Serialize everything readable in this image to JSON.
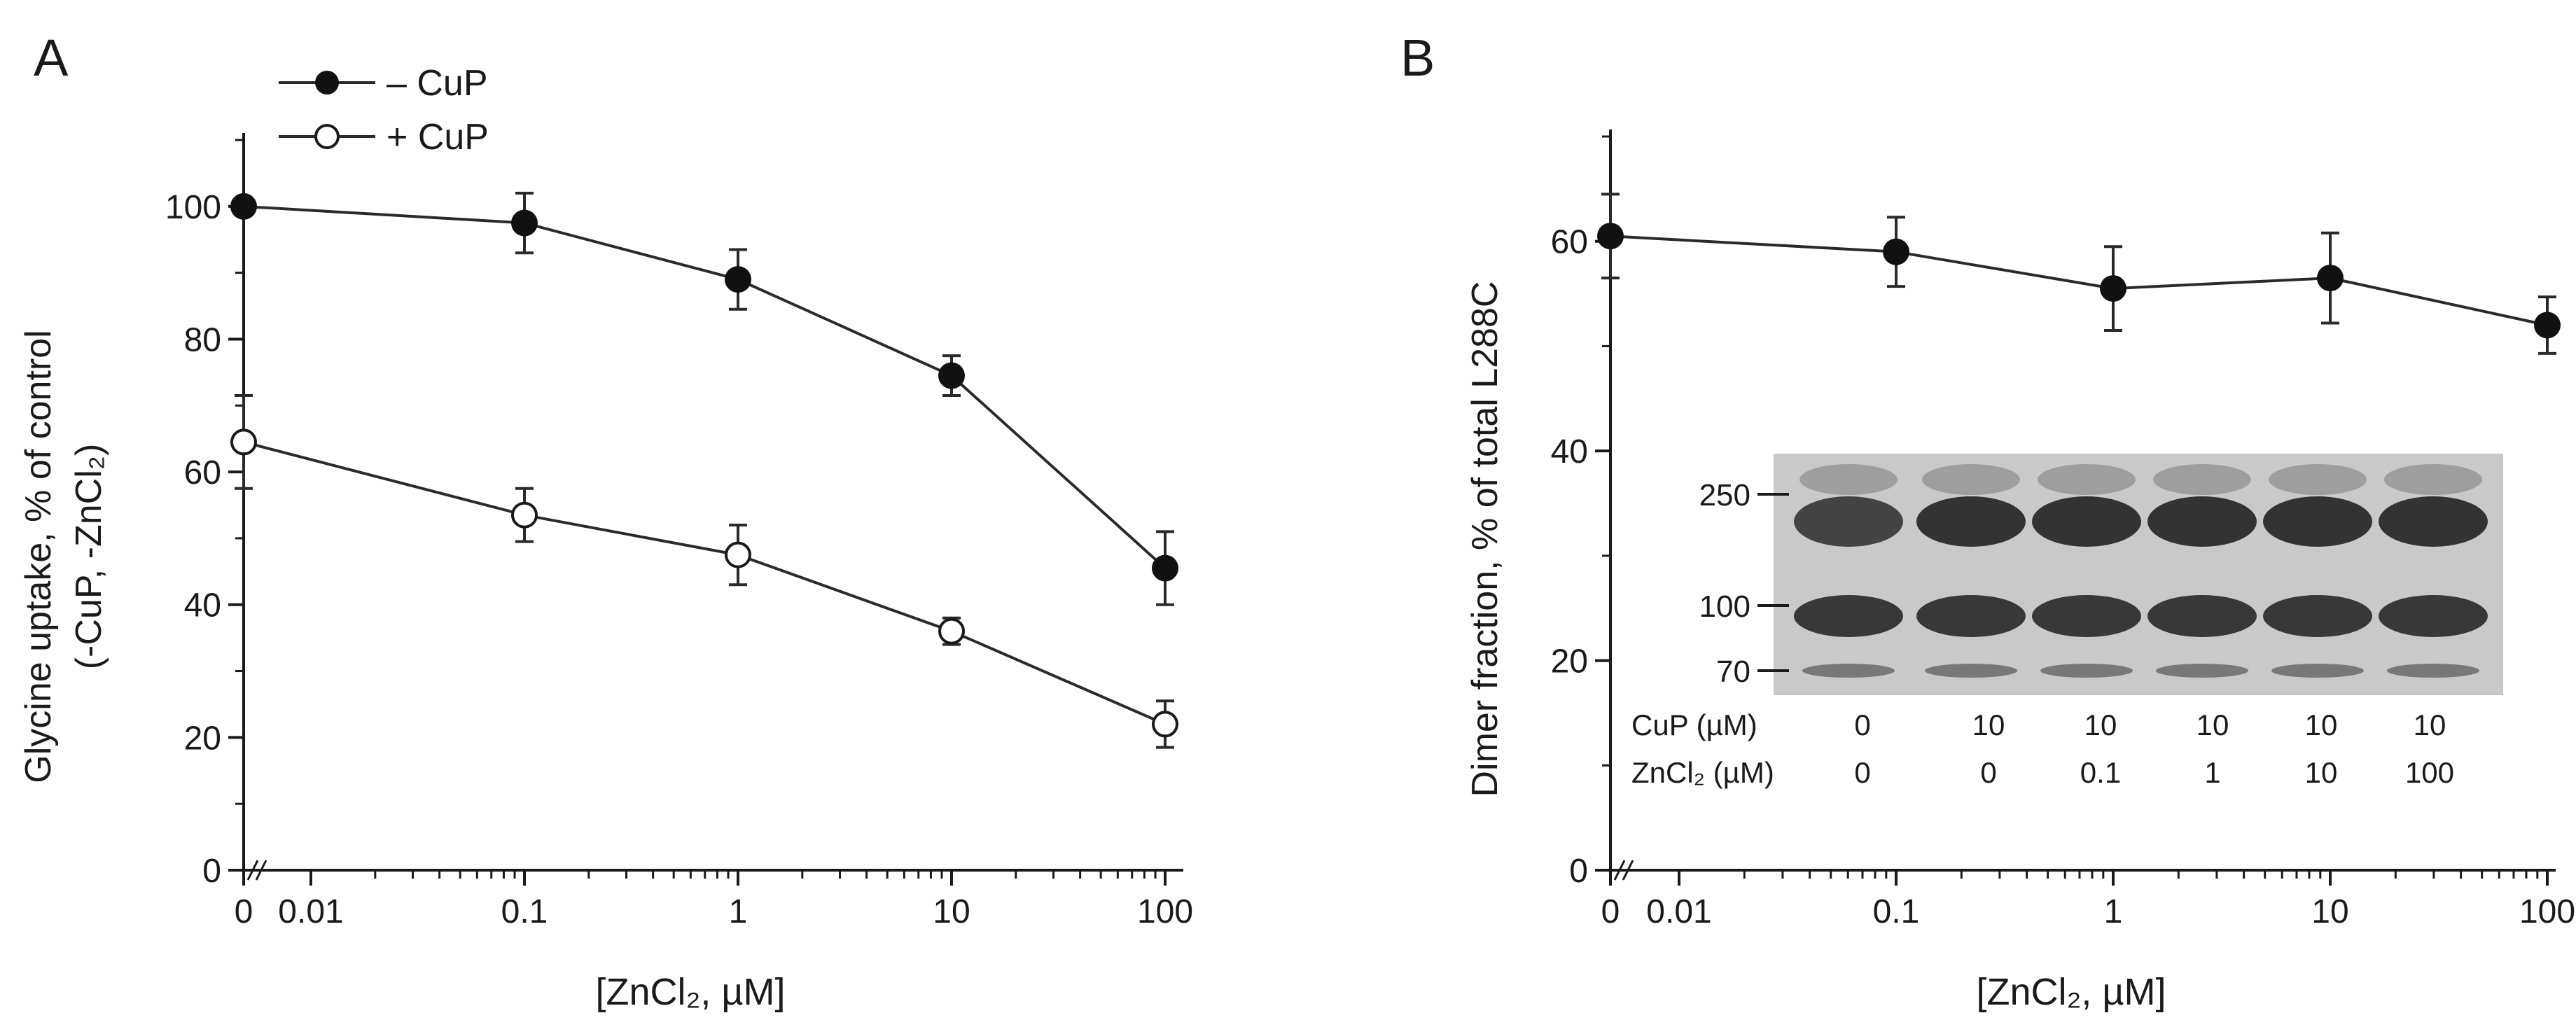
{
  "colors": {
    "ink": "#1a1a1a",
    "filled": "#111111",
    "open_fill": "#ffffff",
    "blot_bg": "#c9c9c9",
    "band": "#2b2b2b"
  },
  "chart_data": [
    {
      "panel": "A",
      "type": "line",
      "xscale": "log-with-zero-break",
      "x": [
        0,
        0.1,
        1,
        10,
        100
      ],
      "xtick_labels": [
        "0",
        "0.01",
        "0.1",
        "1",
        "10",
        "100"
      ],
      "xlabel": "[ZnCl₂, µM]",
      "ylabel": "Glycine uptake, % of control",
      "ylabel2": "(-CuP, -ZnCl₂)",
      "ylim": [
        0,
        110
      ],
      "ytick_labels": [
        "0",
        "20",
        "40",
        "60",
        "80",
        "100"
      ],
      "legend_position": "top-left",
      "series": [
        {
          "name": "– CuP",
          "marker": "filled",
          "values": [
            100,
            97.5,
            89,
            74.5,
            45.5
          ],
          "errors": [
            0,
            4.5,
            4.5,
            3,
            5.5
          ]
        },
        {
          "name": "+ CuP",
          "marker": "open",
          "values": [
            64.5,
            53.5,
            47.5,
            36,
            22
          ],
          "errors": [
            7,
            4,
            4.5,
            2,
            3.5
          ]
        }
      ]
    },
    {
      "panel": "B",
      "type": "line",
      "xscale": "log-with-zero-break",
      "x": [
        0,
        0.1,
        1,
        10,
        100
      ],
      "xtick_labels": [
        "0",
        "0.01",
        "0.1",
        "1",
        "10",
        "100"
      ],
      "xlabel": "[ZnCl₂, µM]",
      "ylabel": "Dimer fraction, % of total L288C",
      "ylim": [
        0,
        70
      ],
      "ytick_labels": [
        "0",
        "20",
        "40",
        "60"
      ],
      "series": [
        {
          "name": "Dimer fraction",
          "marker": "filled",
          "values": [
            60.5,
            59,
            55.5,
            56.5,
            52
          ],
          "errors": [
            4,
            3.3,
            4,
            4.3,
            2.7
          ]
        }
      ]
    }
  ],
  "inset_blot": {
    "mw_markers": [
      "250",
      "100",
      "70"
    ],
    "row_labels": {
      "cup": "CuP (µM)",
      "zncl2": "ZnCl₂ (µM)"
    },
    "cup_values": [
      "0",
      "10",
      "10",
      "10",
      "10",
      "10"
    ],
    "zncl2_values": [
      "0",
      "0",
      "0.1",
      "1",
      "10",
      "100"
    ]
  }
}
